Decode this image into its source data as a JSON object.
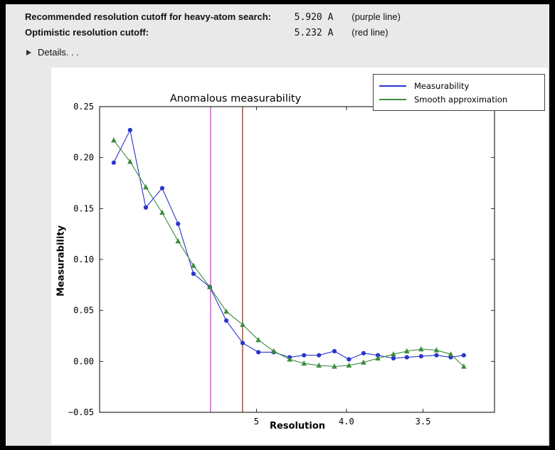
{
  "header": {
    "rows": [
      {
        "label": "Recommended resolution cutoff for heavy-atom search:",
        "value": "5.920 A",
        "note": "(purple line)"
      },
      {
        "label": "Optimistic resolution cutoff:",
        "value": "5.232 A",
        "note": "(red line)"
      }
    ],
    "details_label": "Details. . ."
  },
  "chart_data": {
    "type": "line",
    "title": "Anomalous measurability",
    "xlabel": "Resolution",
    "ylabel": "Measurability",
    "x_scale": "inverse_square_reversed",
    "xlim": [
      35.4,
      3.17
    ],
    "ylim": [
      -0.05,
      0.25
    ],
    "x_ticks": [
      {
        "label": "5",
        "value": 5.0
      },
      {
        "label": "4.0",
        "value": 4.0
      },
      {
        "label": "3.5",
        "value": 3.5
      }
    ],
    "y_ticks": [
      {
        "label": "0.25",
        "value": 0.25
      },
      {
        "label": "0.20",
        "value": 0.2
      },
      {
        "label": "0.15",
        "value": 0.15
      },
      {
        "label": "0.10",
        "value": 0.1
      },
      {
        "label": "0.05",
        "value": 0.05
      },
      {
        "label": "0.00",
        "value": 0.0
      },
      {
        "label": "−0.05",
        "value": -0.05
      }
    ],
    "resolution_bins": [
      15.2,
      10.9,
      9.0,
      7.8,
      7.0,
      6.42,
      5.94,
      5.55,
      5.23,
      4.97,
      4.75,
      4.55,
      4.39,
      4.24,
      4.1,
      3.98,
      3.87,
      3.77,
      3.67,
      3.59,
      3.51,
      3.43,
      3.36,
      3.3
    ],
    "series": [
      {
        "name": "Measurability",
        "color": "#2a35cc",
        "marker": "circle",
        "values": [
          0.195,
          0.227,
          0.151,
          0.17,
          0.135,
          0.086,
          0.073,
          0.04,
          0.018,
          0.009,
          0.009,
          0.004,
          0.006,
          0.006,
          0.01,
          0.002,
          0.008,
          0.006,
          0.003,
          0.004,
          0.005,
          0.006,
          0.004,
          0.006
        ]
      },
      {
        "name": "Smooth approximation",
        "color": "#3d8b3d",
        "marker": "triangle",
        "values": [
          0.217,
          0.196,
          0.171,
          0.146,
          0.118,
          0.094,
          0.073,
          0.049,
          0.036,
          0.021,
          0.01,
          0.002,
          -0.002,
          -0.004,
          -0.005,
          -0.004,
          -0.001,
          0.003,
          0.007,
          0.01,
          0.012,
          0.011,
          0.007,
          -0.005
        ]
      }
    ],
    "vlines": [
      {
        "value": 5.92,
        "color": "#c24fc2",
        "meaning": "purple line"
      },
      {
        "value": 5.232,
        "color": "#8f3922",
        "meaning": "red line"
      }
    ],
    "legend": {
      "position": "top-right"
    }
  }
}
